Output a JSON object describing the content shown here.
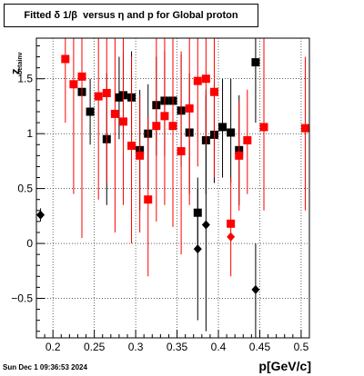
{
  "title": "Fitted δ 1/β  versus η and p for Global proton",
  "timestamp": "Sun Dec  1 09:36:53 2024",
  "chart_data": {
    "type": "scatter",
    "title": "Fitted δ 1/β  versus η and p for Global proton",
    "xlabel": "p[GeV/c]",
    "ylabel": "z",
    "ylabel_sub": "betainv",
    "xlim": [
      0.18,
      0.51
    ],
    "ylim": [
      -0.86,
      1.87
    ],
    "xticks": [
      0.2,
      0.25,
      0.3,
      0.35,
      0.4,
      0.45,
      0.5
    ],
    "xticklabels": [
      "0.2",
      "0.25",
      "0.3",
      "0.35",
      "0.4",
      "0.45",
      "0.5"
    ],
    "yticks": [
      -0.5,
      0,
      0.5,
      1,
      1.5
    ],
    "yticklabels": [
      "−0.5",
      "0",
      "0.5",
      "1",
      "1.5"
    ],
    "grid": true,
    "series": [
      {
        "color": "#000000",
        "marker": "square",
        "points": [
          {
            "x": 0.235,
            "y": 1.38,
            "lo": 0.78,
            "hi": 1.98
          },
          {
            "x": 0.245,
            "y": 1.2,
            "lo": 0.9,
            "hi": 1.5
          },
          {
            "x": 0.265,
            "y": 0.95,
            "lo": 0.35,
            "hi": 1.55
          },
          {
            "x": 0.28,
            "y": 1.33,
            "lo": 0.95,
            "hi": 1.7
          },
          {
            "x": 0.285,
            "y": 1.35,
            "lo": 0.95,
            "hi": 1.75
          },
          {
            "x": 0.295,
            "y": 1.33,
            "lo": 0.9,
            "hi": 1.75
          },
          {
            "x": 0.305,
            "y": 0.85,
            "lo": 0.3,
            "hi": 1.4
          },
          {
            "x": 0.315,
            "y": 1.0,
            "lo": 0.5,
            "hi": 1.45
          },
          {
            "x": 0.325,
            "y": 1.26,
            "lo": 0.8,
            "hi": 1.7
          },
          {
            "x": 0.335,
            "y": 1.3,
            "lo": 0.8,
            "hi": 1.75
          },
          {
            "x": 0.345,
            "y": 1.3,
            "lo": 0.85,
            "hi": 1.8
          },
          {
            "x": 0.355,
            "y": 1.21,
            "lo": 0.7,
            "hi": 1.72
          },
          {
            "x": 0.365,
            "y": 1.01,
            "lo": 0.45,
            "hi": 1.55
          },
          {
            "x": 0.375,
            "y": 0.28,
            "lo": -0.05,
            "hi": 0.6
          },
          {
            "x": 0.385,
            "y": 0.94,
            "lo": 0.45,
            "hi": 1.4
          },
          {
            "x": 0.395,
            "y": 0.99,
            "lo": 0.55,
            "hi": 1.45
          },
          {
            "x": 0.405,
            "y": 1.06,
            "lo": 0.6,
            "hi": 1.5
          },
          {
            "x": 0.415,
            "y": 1.01,
            "lo": 0.55,
            "hi": 1.5
          },
          {
            "x": 0.425,
            "y": 0.85,
            "lo": 0.35,
            "hi": 1.35
          },
          {
            "x": 0.445,
            "y": 1.65,
            "lo": 1.1,
            "hi": 1.87
          }
        ]
      },
      {
        "color": "#000000",
        "marker": "diamond",
        "points": [
          {
            "x": 0.185,
            "y": 0.26,
            "lo": 0.2,
            "hi": 0.32
          },
          {
            "x": 0.375,
            "y": -0.05,
            "lo": -0.7,
            "hi": 0.5
          },
          {
            "x": 0.385,
            "y": 0.17,
            "lo": -0.8,
            "hi": 1.35
          },
          {
            "x": 0.445,
            "y": -0.42,
            "lo": -0.86,
            "hi": 0.0
          }
        ]
      },
      {
        "color": "#ff0000",
        "marker": "square",
        "points": [
          {
            "x": 0.215,
            "y": 1.68,
            "lo": 1.1,
            "hi": 1.87
          },
          {
            "x": 0.225,
            "y": 1.45,
            "lo": 0.45,
            "hi": 1.87
          },
          {
            "x": 0.235,
            "y": 1.52,
            "lo": 0.05,
            "hi": 1.87
          },
          {
            "x": 0.255,
            "y": 1.34,
            "lo": 0.4,
            "hi": 1.87
          },
          {
            "x": 0.265,
            "y": 1.37,
            "lo": 0.55,
            "hi": 1.87
          },
          {
            "x": 0.275,
            "y": 1.18,
            "lo": 0.1,
            "hi": 1.87
          },
          {
            "x": 0.285,
            "y": 1.11,
            "lo": 0.35,
            "hi": 1.87
          },
          {
            "x": 0.295,
            "y": 0.89,
            "lo": 0.0,
            "hi": 1.7
          },
          {
            "x": 0.305,
            "y": 0.8,
            "lo": 0.1,
            "hi": 1.35
          },
          {
            "x": 0.315,
            "y": 0.4,
            "lo": -0.3,
            "hi": 1.15
          },
          {
            "x": 0.325,
            "y": 1.07,
            "lo": 0.2,
            "hi": 1.87
          },
          {
            "x": 0.335,
            "y": 1.16,
            "lo": 0.35,
            "hi": 1.87
          },
          {
            "x": 0.345,
            "y": 1.07,
            "lo": 0.15,
            "hi": 1.87
          },
          {
            "x": 0.355,
            "y": 0.84,
            "lo": -0.1,
            "hi": 1.75
          },
          {
            "x": 0.365,
            "y": 1.23,
            "lo": 0.35,
            "hi": 1.87
          },
          {
            "x": 0.375,
            "y": 1.48,
            "lo": 0.7,
            "hi": 1.87
          },
          {
            "x": 0.385,
            "y": 1.5,
            "lo": 0.9,
            "hi": 1.87
          },
          {
            "x": 0.395,
            "y": 1.38,
            "lo": 0.6,
            "hi": 1.87
          },
          {
            "x": 0.415,
            "y": 0.18,
            "lo": -0.3,
            "hi": 0.6
          },
          {
            "x": 0.425,
            "y": 0.8,
            "lo": 0.3,
            "hi": 1.3
          },
          {
            "x": 0.435,
            "y": 0.94,
            "lo": 0.45,
            "hi": 1.4
          },
          {
            "x": 0.455,
            "y": 1.06,
            "lo": 0.3,
            "hi": 1.87
          },
          {
            "x": 0.505,
            "y": 1.05,
            "lo": 0.3,
            "hi": 1.7
          }
        ]
      },
      {
        "color": "#ff0000",
        "marker": "diamond",
        "points": [
          {
            "x": 0.415,
            "y": 0.06,
            "lo": 0.06,
            "hi": 0.06
          }
        ]
      }
    ]
  }
}
